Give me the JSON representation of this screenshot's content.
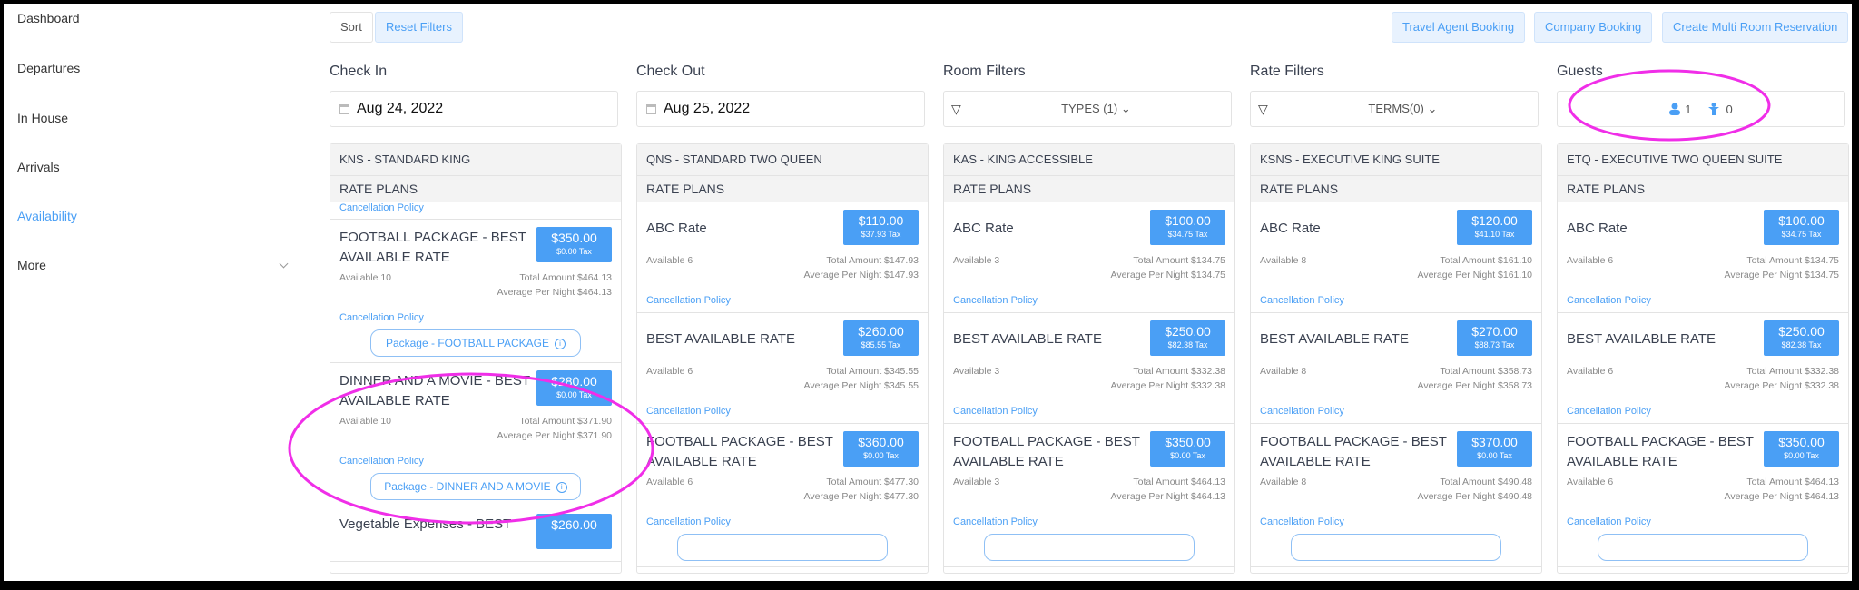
{
  "sidebar": {
    "items": [
      {
        "label": "Dashboard",
        "active": false
      },
      {
        "label": "Departures",
        "active": false
      },
      {
        "label": "In House",
        "active": false
      },
      {
        "label": "Arrivals",
        "active": false
      },
      {
        "label": "Availability",
        "active": true
      },
      {
        "label": "More",
        "active": false
      }
    ]
  },
  "toolbar": {
    "sort": "Sort",
    "reset": "Reset Filters",
    "travel_agent": "Travel Agent Booking",
    "company": "Company Booking",
    "multi_room": "Create Multi Room Reservation"
  },
  "filters": {
    "check_in": {
      "label": "Check In",
      "value": "Aug 24, 2022"
    },
    "check_out": {
      "label": "Check Out",
      "value": "Aug 25, 2022"
    },
    "room": {
      "label": "Room Filters",
      "value": "TYPES (1)"
    },
    "rate": {
      "label": "Rate Filters",
      "value": "TERMS(0)"
    },
    "guests": {
      "label": "Guests",
      "adults": "1",
      "children": "0"
    }
  },
  "accent": "#4a9ff5",
  "rate_plans_label": "RATE PLANS",
  "cancel_label": "Cancellation Policy",
  "columns": [
    {
      "name": "KNS - STANDARD KING",
      "scrolled": true,
      "items": [
        {
          "title": "FOOTBALL PACKAGE - BEST AVAILABLE RATE",
          "price": "$350.00",
          "tax": "$0.00 Tax",
          "available": "Available 10",
          "total": "Total Amount $464.13",
          "avg": "Average Per Night $464.13",
          "package": "Package - FOOTBALL PACKAGE"
        },
        {
          "title": "DINNER AND A MOVIE - BEST AVAILABLE RATE",
          "price": "$280.00",
          "tax": "$0.00 Tax",
          "available": "Available 10",
          "total": "Total Amount $371.90",
          "avg": "Average Per Night $371.90",
          "package": "Package - DINNER AND A MOVIE"
        },
        {
          "title": "Vegetable Expenses - BEST",
          "price": "$260.00",
          "tax": "",
          "available": "",
          "total": "",
          "avg": ""
        }
      ]
    },
    {
      "name": "QNS - STANDARD TWO QUEEN",
      "items": [
        {
          "title": "ABC Rate",
          "price": "$110.00",
          "tax": "$37.93 Tax",
          "available": "Available 6",
          "total": "Total Amount $147.93",
          "avg": "Average Per Night $147.93"
        },
        {
          "title": "BEST AVAILABLE RATE",
          "price": "$260.00",
          "tax": "$85.55 Tax",
          "available": "Available 6",
          "total": "Total Amount $345.55",
          "avg": "Average Per Night $345.55"
        },
        {
          "title": "FOOTBALL PACKAGE - BEST AVAILABLE RATE",
          "price": "$360.00",
          "tax": "$0.00 Tax",
          "available": "Available 6",
          "total": "Total Amount $477.30",
          "avg": "Average Per Night $477.30",
          "package": ""
        }
      ]
    },
    {
      "name": "KAS - KING ACCESSIBLE",
      "items": [
        {
          "title": "ABC Rate",
          "price": "$100.00",
          "tax": "$34.75 Tax",
          "available": "Available 3",
          "total": "Total Amount $134.75",
          "avg": "Average Per Night $134.75"
        },
        {
          "title": "BEST AVAILABLE RATE",
          "price": "$250.00",
          "tax": "$82.38 Tax",
          "available": "Available 3",
          "total": "Total Amount $332.38",
          "avg": "Average Per Night $332.38"
        },
        {
          "title": "FOOTBALL PACKAGE - BEST AVAILABLE RATE",
          "price": "$350.00",
          "tax": "$0.00 Tax",
          "available": "Available 3",
          "total": "Total Amount $464.13",
          "avg": "Average Per Night $464.13",
          "package": ""
        }
      ]
    },
    {
      "name": "KSNS - EXECUTIVE KING SUITE",
      "items": [
        {
          "title": "ABC Rate",
          "price": "$120.00",
          "tax": "$41.10 Tax",
          "available": "Available 8",
          "total": "Total Amount $161.10",
          "avg": "Average Per Night $161.10"
        },
        {
          "title": "BEST AVAILABLE RATE",
          "price": "$270.00",
          "tax": "$88.73 Tax",
          "available": "Available 8",
          "total": "Total Amount $358.73",
          "avg": "Average Per Night $358.73"
        },
        {
          "title": "FOOTBALL PACKAGE - BEST AVAILABLE RATE",
          "price": "$370.00",
          "tax": "$0.00 Tax",
          "available": "Available 8",
          "total": "Total Amount $490.48",
          "avg": "Average Per Night $490.48",
          "package": ""
        }
      ]
    },
    {
      "name": "ETQ - EXECUTIVE TWO QUEEN SUITE",
      "items": [
        {
          "title": "ABC Rate",
          "price": "$100.00",
          "tax": "$34.75 Tax",
          "available": "Available 6",
          "total": "Total Amount $134.75",
          "avg": "Average Per Night $134.75"
        },
        {
          "title": "BEST AVAILABLE RATE",
          "price": "$250.00",
          "tax": "$82.38 Tax",
          "available": "Available 6",
          "total": "Total Amount $332.38",
          "avg": "Average Per Night $332.38"
        },
        {
          "title": "FOOTBALL PACKAGE - BEST AVAILABLE RATE",
          "price": "$350.00",
          "tax": "$0.00 Tax",
          "available": "Available 6",
          "total": "Total Amount $464.13",
          "avg": "Average Per Night $464.13",
          "package": ""
        }
      ]
    }
  ]
}
